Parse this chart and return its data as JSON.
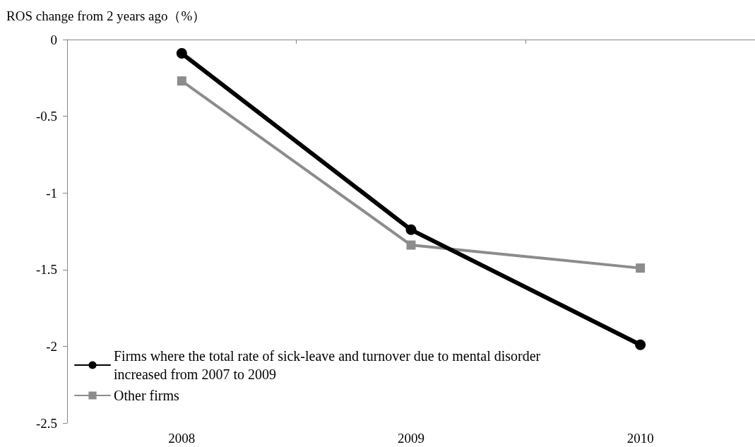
{
  "chart_data": {
    "type": "line",
    "ylabel": "ROS change from 2 years ago（%）",
    "categories": [
      "2008",
      "2009",
      "2010"
    ],
    "series": [
      {
        "name": "Firms where the total rate of sick-leave and turnover due to mental disorder increased from 2007 to 2009",
        "color": "#000000",
        "marker": "circle",
        "values": [
          -0.09,
          -1.24,
          -1.99
        ]
      },
      {
        "name": "Other firms",
        "color": "#8c8c8c",
        "marker": "square",
        "values": [
          -0.27,
          -1.34,
          -1.49
        ]
      }
    ],
    "ylim": [
      -2.5,
      0
    ],
    "yticks": [
      -2.5,
      -2,
      -1.5,
      -1,
      -0.5,
      0
    ],
    "grid": false,
    "legend": "bottom left"
  }
}
